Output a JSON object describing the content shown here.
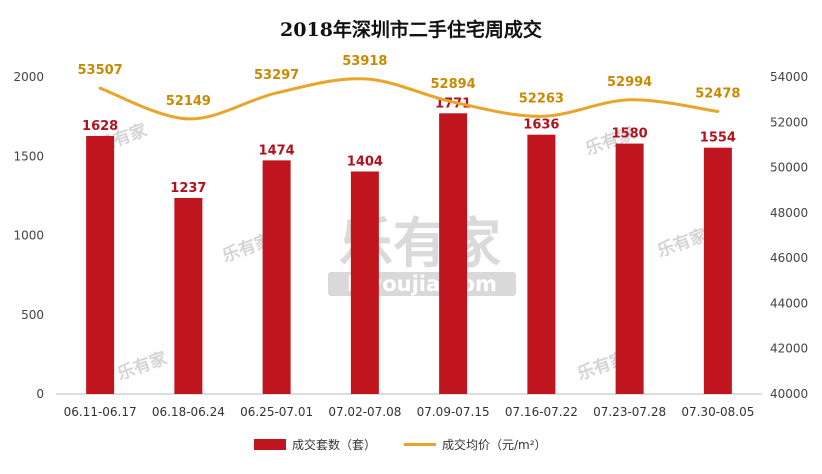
{
  "chart_data": {
    "type": "bar",
    "title": "2018年深圳市二手住宅周成交",
    "categories": [
      "06.11-06.17",
      "06.18-06.24",
      "06.25-07.01",
      "07.02-07.08",
      "07.09-07.15",
      "07.16-07.22",
      "07.23-07.28",
      "07.30-08.05"
    ],
    "series": [
      {
        "name": "成交套数（套）",
        "type": "bar",
        "axis": "left",
        "color": "#c0141e",
        "values": [
          1628,
          1237,
          1474,
          1404,
          1771,
          1636,
          1580,
          1554
        ]
      },
      {
        "name": "成交均价（元/m²）",
        "type": "line",
        "axis": "right",
        "color": "#e8a52a",
        "values": [
          53507,
          52149,
          53297,
          53918,
          52894,
          52263,
          52994,
          52478
        ]
      }
    ],
    "y_left": {
      "range": [
        0,
        2000
      ],
      "ticks": [
        0,
        500,
        1000,
        1500,
        2000
      ]
    },
    "y_right": {
      "range": [
        40000,
        54000
      ],
      "ticks": [
        40000,
        42000,
        44000,
        46000,
        48000,
        50000,
        52000,
        54000
      ]
    },
    "grid": false,
    "legend_position": "bottom",
    "watermark": "乐有家 leyoujia.com"
  }
}
